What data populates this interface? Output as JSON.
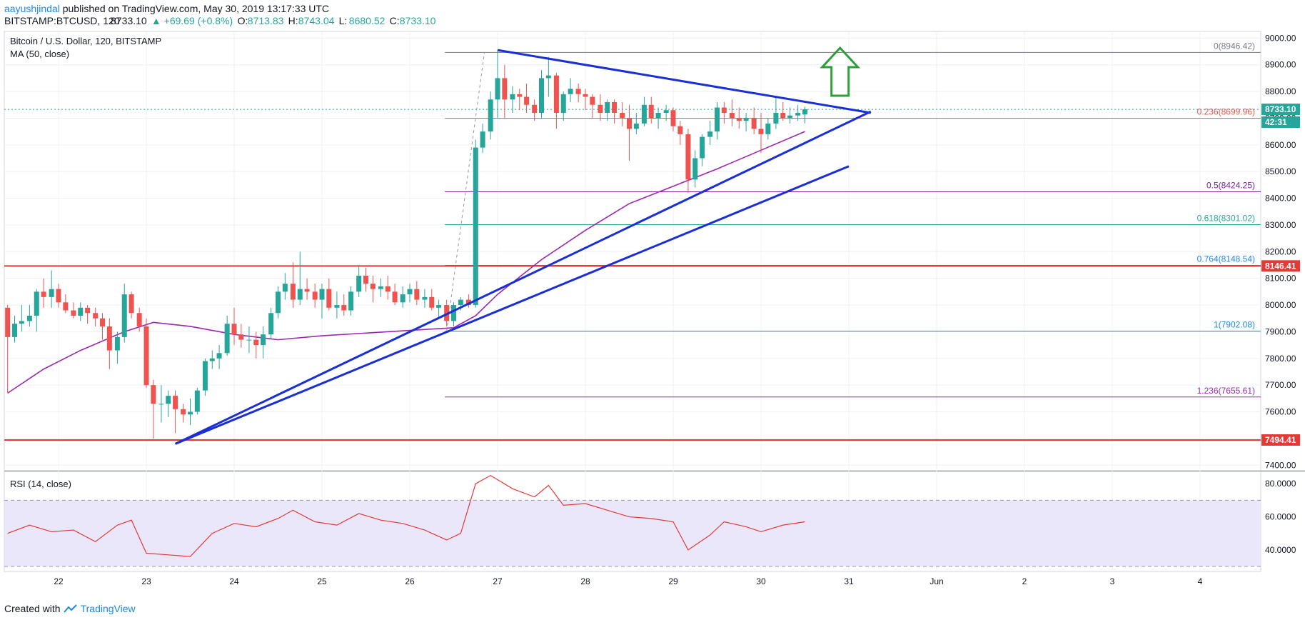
{
  "header": {
    "author": "aayushjindal",
    "published": " published on TradingView.com, May 30, 2019 13:17:33 UTC",
    "symbol": "BITSTAMP:BTCUSD, 120",
    "last": "8733.10",
    "change": "▲ +69.69 (+0.8%)",
    "o_label": "O:",
    "o_value": "8713.83",
    "h_label": "H:",
    "h_value": "8743.04",
    "l_label": "L:",
    "l_value": "8680.52",
    "c_label": "C:",
    "c_value": "8733.10"
  },
  "legend": {
    "title": "Bitcoin / U.S. Dollar, 120, BITSTAMP",
    "ma": "MA (50, close)",
    "rsi": "RSI (14, close)"
  },
  "footer": {
    "created_with": "Created with",
    "brand": "TradingView"
  },
  "colors": {
    "up": "#26a69a",
    "down": "#ef5350",
    "ma": "#9c27b0",
    "trend": "#1a2fd6",
    "support": "#e53935",
    "rsi_line": "#e53935",
    "rsi_band": "#ebe7fb",
    "arrow": "#2e9e3a"
  },
  "chart_data": [
    {
      "type": "candlestick",
      "title": "Bitcoin / U.S. Dollar, 120, BITSTAMP",
      "x_ticks": [
        "22",
        "23",
        "24",
        "25",
        "26",
        "27",
        "28",
        "29",
        "30",
        "31",
        "Jun",
        "2",
        "3",
        "4"
      ],
      "y_ticks": [
        "9000.00",
        "8900.00",
        "8800.00",
        "8700.00",
        "8600.00",
        "8500.00",
        "8400.00",
        "8300.00",
        "8200.00",
        "8100.00",
        "8000.00",
        "7900.00",
        "7800.00",
        "7700.00",
        "7600.00",
        "7500.00",
        "7400.00"
      ],
      "ylim": [
        7382,
        9025
      ],
      "price_tags": [
        {
          "label": "8733.10",
          "value": 8733.1,
          "kind": "last"
        },
        {
          "label": "42:31",
          "value": 8685,
          "kind": "timer"
        },
        {
          "label": "8146.41",
          "value": 8146.41,
          "kind": "support"
        },
        {
          "label": "7494.41",
          "value": 7494.41,
          "kind": "support"
        }
      ],
      "fib_levels": [
        {
          "label": "0(8946.42)",
          "value": 8946.42,
          "color": "#787b86"
        },
        {
          "label": "0.236(8699.96)",
          "value": 8699.96,
          "color": "#ef5350"
        },
        {
          "label": "0.5(8424.25)",
          "value": 8424.25,
          "color": "#7b1fa2"
        },
        {
          "label": "0.618(8301.02)",
          "value": 8301.02,
          "color": "#26a69a"
        },
        {
          "label": "0.764(8148.54)",
          "value": 8148.54,
          "color": "#1e88e5"
        },
        {
          "label": "1(7902.08)",
          "value": 7902.08,
          "color": "#1e88e5"
        },
        {
          "label": "1.236(7655.61)",
          "value": 7655.61,
          "color": "#9c27b0"
        }
      ],
      "horizontal_lines": [
        8146.41,
        7494.41
      ],
      "trend_lines": [
        {
          "from": [
            23.33,
            7480
          ],
          "to": [
            31.25,
            8725
          ]
        },
        {
          "from": [
            27.0,
            8955
          ],
          "to": [
            31.25,
            8720
          ]
        },
        {
          "from": [
            23.33,
            7480
          ],
          "to": [
            31.0,
            8520
          ]
        }
      ],
      "ohlc": [
        [
          21.42,
          7990,
          8000,
          7670,
          7880
        ],
        [
          21.5,
          7880,
          7960,
          7860,
          7930
        ],
        [
          21.58,
          7930,
          8000,
          7900,
          7940
        ],
        [
          21.67,
          7940,
          8000,
          7920,
          7960
        ],
        [
          21.75,
          7960,
          8060,
          7900,
          8050
        ],
        [
          21.83,
          8050,
          8100,
          7990,
          8030
        ],
        [
          21.92,
          8030,
          8130,
          7990,
          8060
        ],
        [
          22.0,
          8060,
          8080,
          7990,
          8010
        ],
        [
          22.08,
          8010,
          8040,
          7970,
          7980
        ],
        [
          22.17,
          7980,
          8010,
          7950,
          7960
        ],
        [
          22.25,
          7960,
          8010,
          7940,
          7990
        ],
        [
          22.33,
          7990,
          8000,
          7930,
          7970
        ],
        [
          22.42,
          7970,
          7990,
          7920,
          7950
        ],
        [
          22.5,
          7950,
          7970,
          7870,
          7920
        ],
        [
          22.58,
          7920,
          7950,
          7760,
          7830
        ],
        [
          22.67,
          7830,
          7900,
          7780,
          7880
        ],
        [
          22.75,
          7880,
          8080,
          7860,
          8040
        ],
        [
          22.83,
          8040,
          8050,
          7950,
          7970
        ],
        [
          22.92,
          7970,
          7990,
          7900,
          7920
        ],
        [
          23.0,
          7920,
          7950,
          7690,
          7700
        ],
        [
          23.08,
          7700,
          7720,
          7500,
          7630
        ],
        [
          23.17,
          7630,
          7700,
          7560,
          7630
        ],
        [
          23.25,
          7630,
          7680,
          7580,
          7660
        ],
        [
          23.33,
          7660,
          7680,
          7520,
          7610
        ],
        [
          23.42,
          7610,
          7630,
          7560,
          7590
        ],
        [
          23.5,
          7590,
          7650,
          7550,
          7600
        ],
        [
          23.58,
          7600,
          7690,
          7590,
          7680
        ],
        [
          23.67,
          7680,
          7800,
          7660,
          7790
        ],
        [
          23.75,
          7790,
          7830,
          7760,
          7800
        ],
        [
          23.83,
          7800,
          7850,
          7760,
          7820
        ],
        [
          23.92,
          7820,
          7960,
          7810,
          7930
        ],
        [
          24.0,
          7930,
          7990,
          7850,
          7890
        ],
        [
          24.08,
          7890,
          7930,
          7840,
          7870
        ],
        [
          24.17,
          7870,
          7920,
          7820,
          7870
        ],
        [
          24.25,
          7870,
          7900,
          7800,
          7850
        ],
        [
          24.33,
          7850,
          7920,
          7800,
          7890
        ],
        [
          24.42,
          7890,
          7990,
          7870,
          7970
        ],
        [
          24.5,
          7970,
          8070,
          7950,
          8050
        ],
        [
          24.58,
          8050,
          8120,
          8020,
          8080
        ],
        [
          24.67,
          8080,
          8160,
          7990,
          8020
        ],
        [
          24.75,
          8020,
          8200,
          8000,
          8060
        ],
        [
          24.83,
          8060,
          8100,
          8020,
          8050
        ],
        [
          24.92,
          8050,
          8080,
          7990,
          8020
        ],
        [
          25.0,
          8020,
          8080,
          7950,
          8060
        ],
        [
          25.08,
          8060,
          8100,
          7980,
          7990
        ],
        [
          25.17,
          7990,
          8050,
          7950,
          8000
        ],
        [
          25.25,
          8000,
          8040,
          7960,
          7980
        ],
        [
          25.33,
          7980,
          8070,
          7960,
          8050
        ],
        [
          25.42,
          8050,
          8150,
          8030,
          8110
        ],
        [
          25.5,
          8110,
          8140,
          8050,
          8080
        ],
        [
          25.58,
          8080,
          8110,
          8010,
          8060
        ],
        [
          25.67,
          8060,
          8100,
          8030,
          8070
        ],
        [
          25.75,
          8070,
          8110,
          8020,
          8050
        ],
        [
          25.83,
          8050,
          8080,
          8000,
          8010
        ],
        [
          25.92,
          8010,
          8070,
          7990,
          8040
        ],
        [
          26.0,
          8040,
          8080,
          8010,
          8060
        ],
        [
          26.08,
          8060,
          8090,
          8000,
          8020
        ],
        [
          26.17,
          8020,
          8060,
          7990,
          8030
        ],
        [
          26.25,
          8030,
          8060,
          7980,
          7990
        ],
        [
          26.33,
          7990,
          8020,
          7950,
          8000
        ],
        [
          26.42,
          8000,
          8020,
          7920,
          7940
        ],
        [
          26.5,
          7940,
          8010,
          7920,
          8000
        ],
        [
          26.58,
          8000,
          8030,
          7980,
          8020
        ],
        [
          26.67,
          8020,
          8040,
          7990,
          8000
        ],
        [
          26.75,
          8000,
          8620,
          7990,
          8590
        ],
        [
          26.83,
          8590,
          8680,
          8570,
          8650
        ],
        [
          26.92,
          8650,
          8800,
          8620,
          8770
        ],
        [
          27.0,
          8770,
          8955,
          8700,
          8850
        ],
        [
          27.08,
          8850,
          8900,
          8700,
          8770
        ],
        [
          27.17,
          8770,
          8820,
          8720,
          8790
        ],
        [
          27.25,
          8790,
          8810,
          8730,
          8780
        ],
        [
          27.33,
          8780,
          8830,
          8720,
          8750
        ],
        [
          27.42,
          8750,
          8770,
          8690,
          8720
        ],
        [
          27.5,
          8720,
          8880,
          8700,
          8850
        ],
        [
          27.58,
          8850,
          8930,
          8780,
          8860
        ],
        [
          27.67,
          8860,
          8870,
          8660,
          8720
        ],
        [
          27.75,
          8720,
          8800,
          8690,
          8790
        ],
        [
          27.83,
          8790,
          8850,
          8760,
          8810
        ],
        [
          27.92,
          8810,
          8830,
          8760,
          8790
        ],
        [
          28.0,
          8790,
          8810,
          8730,
          8780
        ],
        [
          28.08,
          8780,
          8790,
          8700,
          8750
        ],
        [
          28.17,
          8750,
          8790,
          8690,
          8720
        ],
        [
          28.25,
          8720,
          8770,
          8690,
          8760
        ],
        [
          28.33,
          8760,
          8770,
          8680,
          8720
        ],
        [
          28.42,
          8720,
          8760,
          8670,
          8700
        ],
        [
          28.5,
          8700,
          8750,
          8540,
          8660
        ],
        [
          28.58,
          8660,
          8720,
          8640,
          8680
        ],
        [
          28.67,
          8680,
          8780,
          8670,
          8750
        ],
        [
          28.75,
          8750,
          8780,
          8680,
          8700
        ],
        [
          28.83,
          8700,
          8740,
          8660,
          8720
        ],
        [
          28.92,
          8720,
          8750,
          8690,
          8730
        ],
        [
          29.0,
          8730,
          8740,
          8650,
          8670
        ],
        [
          29.08,
          8670,
          8690,
          8600,
          8640
        ],
        [
          29.17,
          8640,
          8660,
          8420,
          8470
        ],
        [
          29.25,
          8470,
          8580,
          8440,
          8550
        ],
        [
          29.33,
          8550,
          8640,
          8520,
          8630
        ],
        [
          29.42,
          8630,
          8690,
          8600,
          8650
        ],
        [
          29.5,
          8650,
          8760,
          8620,
          8740
        ],
        [
          29.58,
          8740,
          8760,
          8680,
          8720
        ],
        [
          29.67,
          8720,
          8770,
          8670,
          8700
        ],
        [
          29.75,
          8700,
          8740,
          8660,
          8690
        ],
        [
          29.83,
          8690,
          8720,
          8650,
          8700
        ],
        [
          29.92,
          8700,
          8740,
          8640,
          8660
        ],
        [
          30.0,
          8660,
          8720,
          8570,
          8640
        ],
        [
          30.08,
          8640,
          8700,
          8620,
          8680
        ],
        [
          30.17,
          8680,
          8780,
          8660,
          8720
        ],
        [
          30.25,
          8720,
          8760,
          8690,
          8700
        ],
        [
          30.33,
          8700,
          8740,
          8680,
          8710
        ],
        [
          30.42,
          8710,
          8750,
          8690,
          8720
        ],
        [
          30.5,
          8713.83,
          8743.04,
          8680.52,
          8733.1
        ]
      ],
      "ma50": [
        [
          21.42,
          7670
        ],
        [
          21.83,
          7760
        ],
        [
          22.25,
          7830
        ],
        [
          22.75,
          7900
        ],
        [
          23.08,
          7935
        ],
        [
          23.5,
          7920
        ],
        [
          24.0,
          7890
        ],
        [
          24.5,
          7870
        ],
        [
          25.0,
          7885
        ],
        [
          25.5,
          7895
        ],
        [
          26.0,
          7905
        ],
        [
          26.5,
          7915
        ],
        [
          26.75,
          7960
        ],
        [
          27.0,
          8040
        ],
        [
          27.5,
          8170
        ],
        [
          28.0,
          8280
        ],
        [
          28.5,
          8380
        ],
        [
          29.0,
          8445
        ],
        [
          29.5,
          8510
        ],
        [
          30.0,
          8580
        ],
        [
          30.5,
          8650
        ]
      ]
    },
    {
      "type": "line",
      "title": "RSI (14, close)",
      "y_ticks": [
        "80.0000",
        "60.0000",
        "40.0000"
      ],
      "ylim": [
        27,
        87
      ],
      "band": [
        30,
        70
      ],
      "values": [
        [
          21.42,
          50
        ],
        [
          21.67,
          55
        ],
        [
          21.92,
          51
        ],
        [
          22.17,
          52
        ],
        [
          22.42,
          45
        ],
        [
          22.67,
          55
        ],
        [
          22.83,
          58
        ],
        [
          23.0,
          38
        ],
        [
          23.25,
          37
        ],
        [
          23.5,
          36
        ],
        [
          23.75,
          50
        ],
        [
          24.0,
          56
        ],
        [
          24.25,
          54
        ],
        [
          24.5,
          59
        ],
        [
          24.67,
          64
        ],
        [
          24.92,
          57
        ],
        [
          25.17,
          55
        ],
        [
          25.42,
          62
        ],
        [
          25.67,
          58
        ],
        [
          25.92,
          56
        ],
        [
          26.17,
          52
        ],
        [
          26.42,
          46
        ],
        [
          26.58,
          50
        ],
        [
          26.75,
          80
        ],
        [
          26.92,
          85
        ],
        [
          27.17,
          77
        ],
        [
          27.42,
          72
        ],
        [
          27.58,
          79
        ],
        [
          27.75,
          67
        ],
        [
          28.0,
          68
        ],
        [
          28.25,
          64
        ],
        [
          28.5,
          60
        ],
        [
          28.75,
          59
        ],
        [
          29.0,
          57
        ],
        [
          29.17,
          40
        ],
        [
          29.42,
          49
        ],
        [
          29.58,
          57
        ],
        [
          29.83,
          54
        ],
        [
          30.0,
          51
        ],
        [
          30.25,
          55
        ],
        [
          30.5,
          57
        ]
      ]
    }
  ]
}
